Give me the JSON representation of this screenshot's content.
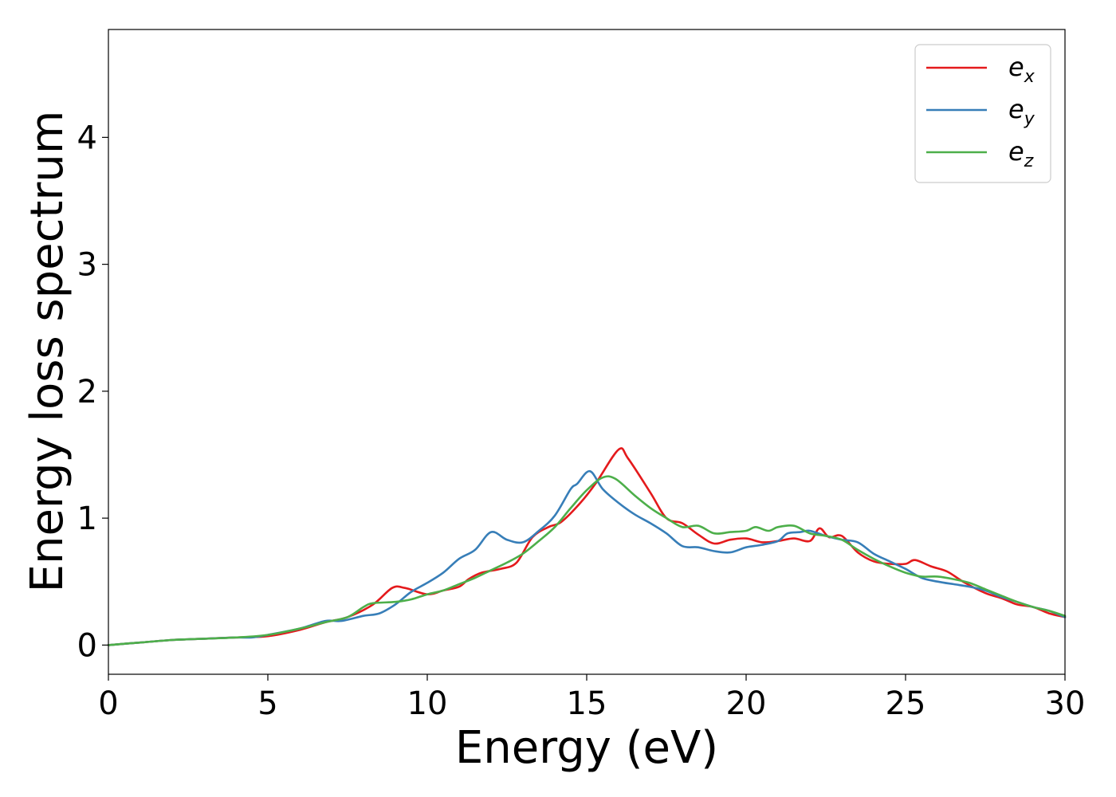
{
  "chart_data": {
    "type": "line",
    "xlabel": "Energy (eV)",
    "ylabel": "Energy loss spectrum",
    "xlim": [
      0,
      30
    ],
    "ylim": [
      -0.23,
      4.85
    ],
    "xticks": [
      "0",
      "5",
      "10",
      "15",
      "20",
      "25",
      "30"
    ],
    "xtick_values": [
      0,
      5,
      10,
      15,
      20,
      25,
      30
    ],
    "yticks": [
      "0",
      "1",
      "2",
      "3",
      "4"
    ],
    "ytick_values": [
      0,
      1,
      2,
      3,
      4
    ],
    "grid": false,
    "legend_position": "top-right",
    "series": [
      {
        "name": "e",
        "subscript": "x",
        "color": "#e41a1c",
        "x": [
          0,
          1,
          2,
          3,
          4,
          5,
          6,
          6.8,
          7.5,
          8.3,
          8.9,
          9.3,
          10,
          10.5,
          11,
          11.3,
          11.7,
          12.3,
          12.8,
          13.3,
          13.8,
          14.2,
          14.8,
          15.3,
          16,
          16.3,
          17,
          17.5,
          18,
          18.5,
          19,
          19.5,
          20,
          20.5,
          21,
          21.5,
          22,
          22.3,
          22.6,
          23,
          23.5,
          24,
          24.5,
          25,
          25.3,
          25.8,
          26.3,
          26.8,
          27.5,
          28,
          28.5,
          29,
          29.5,
          30
        ],
        "y": [
          0.0,
          0.02,
          0.04,
          0.05,
          0.06,
          0.07,
          0.12,
          0.18,
          0.22,
          0.32,
          0.45,
          0.45,
          0.4,
          0.43,
          0.46,
          0.52,
          0.57,
          0.6,
          0.65,
          0.85,
          0.93,
          0.97,
          1.12,
          1.28,
          1.54,
          1.47,
          1.2,
          1.0,
          0.96,
          0.87,
          0.8,
          0.83,
          0.84,
          0.81,
          0.82,
          0.84,
          0.82,
          0.92,
          0.85,
          0.86,
          0.73,
          0.66,
          0.64,
          0.64,
          0.67,
          0.62,
          0.58,
          0.5,
          0.41,
          0.37,
          0.32,
          0.3,
          0.25,
          0.22
        ]
      },
      {
        "name": "e",
        "subscript": "y",
        "color": "#377eb8",
        "x": [
          0,
          1,
          2,
          3,
          4,
          4.5,
          5,
          6,
          6.8,
          7.3,
          8,
          8.5,
          9,
          9.5,
          10,
          10.5,
          11,
          11.5,
          12,
          12.5,
          13,
          13.5,
          14,
          14.5,
          14.7,
          15.1,
          15.5,
          16,
          16.5,
          17,
          17.5,
          18,
          18.5,
          19,
          19.5,
          20,
          20.5,
          21,
          21.3,
          21.7,
          22,
          22.5,
          23,
          23.5,
          24,
          24.5,
          25,
          25.5,
          26,
          26.5,
          27,
          27.5,
          28,
          28.5,
          29,
          29.5,
          30
        ],
        "y": [
          0.0,
          0.02,
          0.04,
          0.05,
          0.06,
          0.06,
          0.08,
          0.13,
          0.19,
          0.19,
          0.23,
          0.25,
          0.32,
          0.42,
          0.49,
          0.57,
          0.68,
          0.75,
          0.89,
          0.83,
          0.81,
          0.9,
          1.02,
          1.23,
          1.27,
          1.37,
          1.23,
          1.12,
          1.03,
          0.96,
          0.88,
          0.78,
          0.77,
          0.74,
          0.73,
          0.77,
          0.79,
          0.82,
          0.88,
          0.89,
          0.9,
          0.86,
          0.83,
          0.81,
          0.72,
          0.66,
          0.6,
          0.53,
          0.5,
          0.48,
          0.46,
          0.43,
          0.38,
          0.34,
          0.3,
          0.27,
          0.22
        ]
      },
      {
        "name": "e",
        "subscript": "z",
        "color": "#4daf4a",
        "x": [
          0,
          1,
          2,
          3,
          4,
          5,
          6,
          6.8,
          7.5,
          8,
          8.3,
          9,
          9.5,
          10,
          10.5,
          11,
          11.5,
          12,
          12.5,
          13,
          13.5,
          14,
          14.5,
          15,
          15.5,
          15.9,
          16.5,
          17,
          17.5,
          18,
          18.5,
          19,
          19.5,
          20,
          20.3,
          20.7,
          21,
          21.5,
          22,
          22.5,
          23,
          23.5,
          24,
          24.5,
          25,
          25.5,
          26,
          26.5,
          27,
          27.5,
          28,
          28.5,
          29,
          29.5,
          30
        ],
        "y": [
          0.0,
          0.02,
          0.04,
          0.05,
          0.06,
          0.08,
          0.13,
          0.18,
          0.22,
          0.3,
          0.33,
          0.34,
          0.36,
          0.4,
          0.43,
          0.48,
          0.53,
          0.59,
          0.65,
          0.72,
          0.82,
          0.93,
          1.08,
          1.22,
          1.32,
          1.31,
          1.18,
          1.08,
          1.0,
          0.93,
          0.94,
          0.88,
          0.89,
          0.9,
          0.93,
          0.9,
          0.93,
          0.94,
          0.88,
          0.86,
          0.83,
          0.75,
          0.68,
          0.62,
          0.57,
          0.54,
          0.54,
          0.52,
          0.49,
          0.44,
          0.39,
          0.34,
          0.3,
          0.27,
          0.23
        ]
      }
    ]
  }
}
